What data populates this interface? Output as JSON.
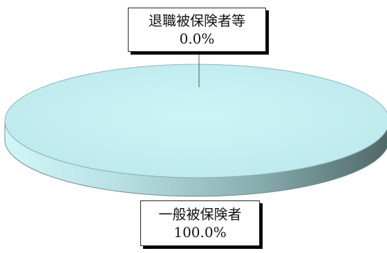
{
  "chart_data": {
    "type": "pie",
    "style": "3d",
    "slices": [
      {
        "label": "退職被保険者等",
        "value": 0.0,
        "value_label": "0.0%"
      },
      {
        "label": "一般被保険者",
        "value": 100.0,
        "value_label": "100.0%"
      }
    ],
    "colors": {
      "top_face": "#c8f2f4",
      "top_face_edge": "#8fb4b8",
      "side_light": "#d2f6f8",
      "side_dark": "#4e6766",
      "callout_shadow": "#000000"
    },
    "legend": "none"
  }
}
